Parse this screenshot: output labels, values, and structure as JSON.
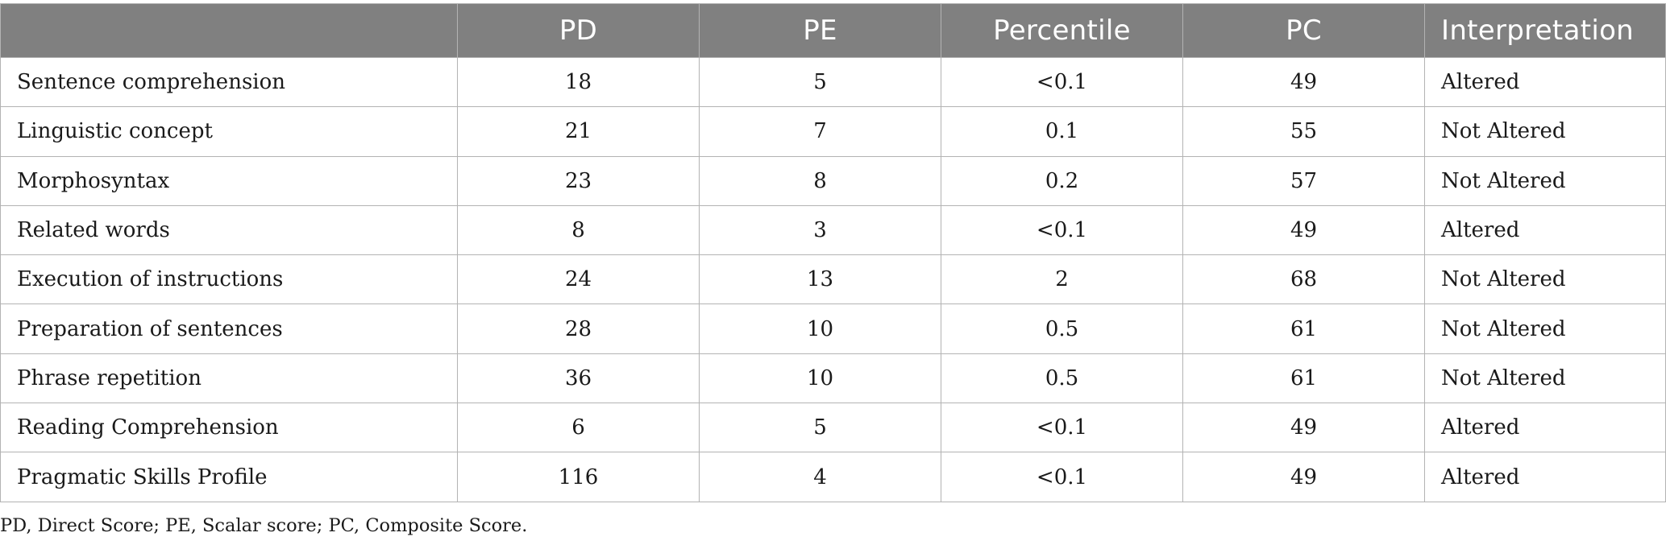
{
  "table": {
    "headers": {
      "row_label": "",
      "pd": "PD",
      "pe": "PE",
      "percentile": "Percentile",
      "pc": "PC",
      "interpretation": "Interpretation"
    },
    "rows": [
      {
        "label": "Sentence comprehension",
        "pd": "18",
        "pe": "5",
        "percentile": "<0.1",
        "pc": "49",
        "interpretation": "Altered"
      },
      {
        "label": "Linguistic concept",
        "pd": "21",
        "pe": "7",
        "percentile": "0.1",
        "pc": "55",
        "interpretation": "Not Altered"
      },
      {
        "label": "Morphosyntax",
        "pd": "23",
        "pe": "8",
        "percentile": "0.2",
        "pc": "57",
        "interpretation": "Not Altered"
      },
      {
        "label": "Related words",
        "pd": "8",
        "pe": "3",
        "percentile": "<0.1",
        "pc": "49",
        "interpretation": "Altered"
      },
      {
        "label": "Execution of instructions",
        "pd": "24",
        "pe": "13",
        "percentile": "2",
        "pc": "68",
        "interpretation": "Not Altered"
      },
      {
        "label": "Preparation of sentences",
        "pd": "28",
        "pe": "10",
        "percentile": "0.5",
        "pc": "61",
        "interpretation": "Not Altered"
      },
      {
        "label": "Phrase repetition",
        "pd": "36",
        "pe": "10",
        "percentile": "0.5",
        "pc": "61",
        "interpretation": "Not Altered"
      },
      {
        "label": "Reading Comprehension",
        "pd": "6",
        "pe": "5",
        "percentile": "<0.1",
        "pc": "49",
        "interpretation": "Altered"
      },
      {
        "label": "Pragmatic Skills Profile",
        "pd": "116",
        "pe": "4",
        "percentile": "<0.1",
        "pc": "49",
        "interpretation": "Altered"
      }
    ]
  },
  "footnote": "PD, Direct Score; PE, Scalar score; PC, Composite Score.",
  "colors": {
    "header_background": "#808080",
    "header_text": "#ffffff",
    "grid_line": "#b3b3b3",
    "body_text": "#1a1a1a"
  }
}
